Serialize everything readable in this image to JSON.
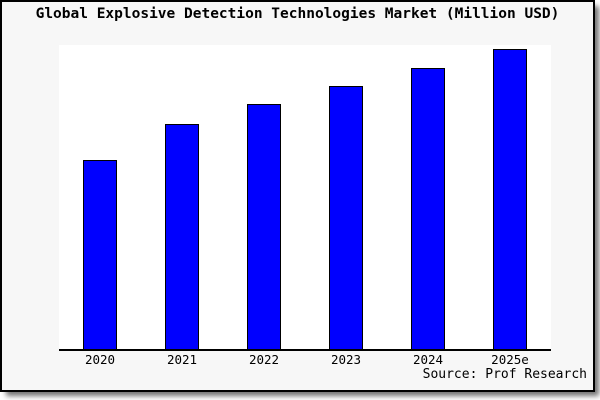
{
  "figure": {
    "title": "Global Explosive Detection Technologies Market (Million USD)",
    "source": "Source: Prof Research"
  },
  "colors": {
    "bar_fill": "#0000ff",
    "bar_border": "#000000",
    "figure_bg": "#f7f7f7",
    "plot_bg": "#ffffff",
    "card_border": "#000000",
    "shadow": "#999999"
  },
  "chart_data": {
    "type": "bar",
    "title": "Global Explosive Detection Technologies Market (Million USD)",
    "categories": [
      "2020",
      "2021",
      "2022",
      "2023",
      "2024",
      "2025e"
    ],
    "values": [
      61.7,
      73.8,
      80.2,
      86.1,
      92.0,
      98.3
    ],
    "value_note": "relative bar heights in % of plot height; no y-axis scale or tick labels are shown in the chart",
    "xlabel": "",
    "ylabel": "",
    "ylim": [
      0,
      100
    ],
    "grid": false,
    "legend": false,
    "y_axis_visible": false,
    "annotation": "Source: Prof Research"
  }
}
